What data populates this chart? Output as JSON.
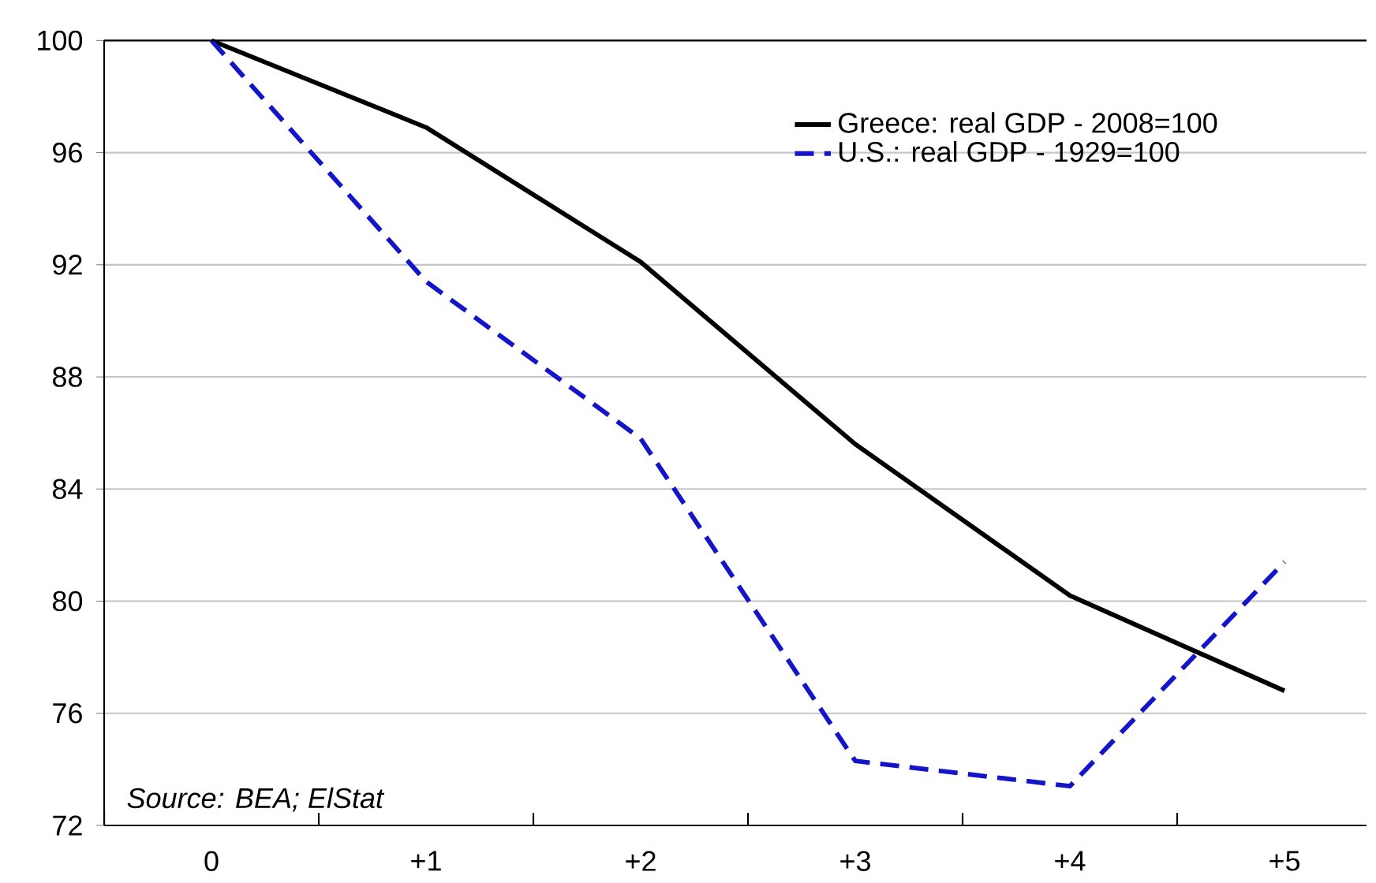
{
  "chart_data": {
    "type": "line",
    "categories": [
      "0",
      "+1",
      "+2",
      "+3",
      "+4",
      "+5"
    ],
    "series": [
      {
        "name": "Greece: real GDP - 2008=100",
        "color": "#000000",
        "line_style": "solid",
        "values": [
          100,
          96.9,
          92.1,
          85.6,
          80.2,
          76.8
        ]
      },
      {
        "name": "U.S.: real GDP - 1929=100",
        "color": "#1414c8",
        "line_style": "dashed",
        "values": [
          100,
          91.4,
          85.8,
          74.3,
          73.4,
          81.4
        ]
      }
    ],
    "ylim": [
      72,
      100
    ],
    "yticks": [
      72,
      76,
      80,
      84,
      88,
      92,
      96,
      100
    ],
    "grid": "y",
    "legend": "top right",
    "marker": "none",
    "annotations": [
      "Source: BEA; ElStat"
    ]
  }
}
